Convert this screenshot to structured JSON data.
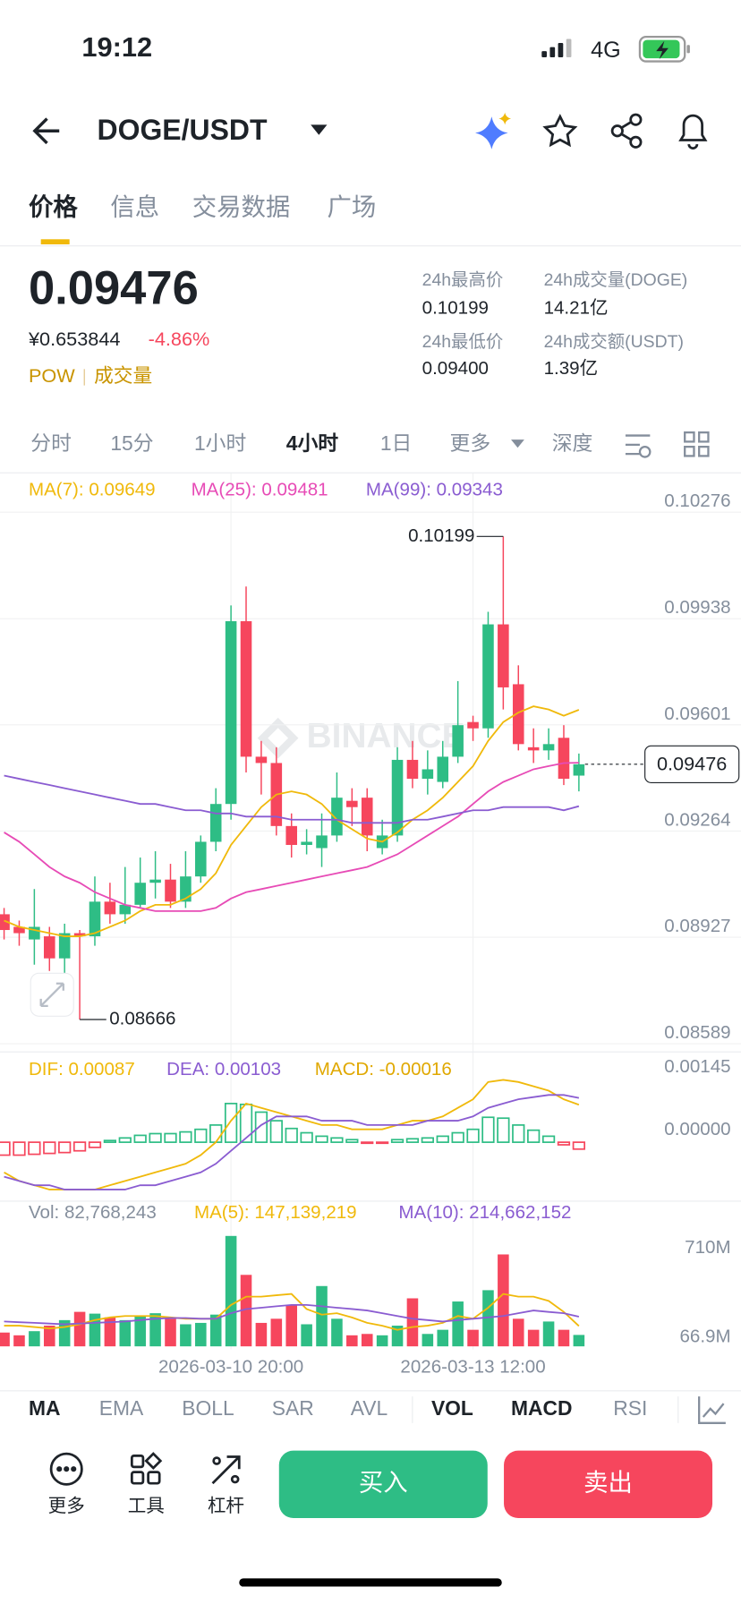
{
  "status_bar": {
    "time": "19:12",
    "network": "4G"
  },
  "header": {
    "pair": "DOGE/USDT"
  },
  "tabs": [
    "价格",
    "信息",
    "交易数据",
    "广场"
  ],
  "ticker": {
    "price": "0.09476",
    "cny": "¥0.653844",
    "change": "-4.86%",
    "tags": [
      "POW",
      "成交量"
    ],
    "stats": [
      {
        "label": "24h最高价",
        "value": "0.10199"
      },
      {
        "label": "24h成交量(DOGE)",
        "value": "14.21亿"
      },
      {
        "label": "24h最低价",
        "value": "0.09400"
      },
      {
        "label": "24h成交额(USDT)",
        "value": "1.39亿"
      }
    ]
  },
  "intervals": [
    "分时",
    "15分",
    "1小时",
    "4小时",
    "1日",
    "更多",
    "深度"
  ],
  "watermark": "BINANCE",
  "chart_data": [
    {
      "type": "candlestick",
      "up_color": "#2ebd85",
      "down_color": "#f6465d",
      "grid": true,
      "categories": [
        null,
        null,
        null,
        null,
        null,
        null,
        null,
        null,
        null,
        null,
        null,
        null,
        null,
        null,
        null,
        "2026-03-10 20:00",
        null,
        null,
        null,
        null,
        null,
        null,
        null,
        null,
        null,
        null,
        null,
        null,
        null,
        null,
        null,
        "2026-03-13 12:00",
        null,
        null,
        null,
        null,
        null,
        null,
        null
      ],
      "open": [
        0.09,
        0.0896,
        0.0892,
        0.0893,
        0.0886,
        0.0894,
        0.0893,
        0.0904,
        0.09,
        0.0903,
        0.091,
        0.0911,
        0.0904,
        0.0912,
        0.0923,
        0.0935,
        0.0993,
        0.095,
        0.0948,
        0.0928,
        0.0922,
        0.0921,
        0.0925,
        0.0936,
        0.0937,
        0.0921,
        0.0925,
        0.0949,
        0.0943,
        0.0942,
        0.095,
        0.0961,
        0.0959,
        0.0992,
        0.0973,
        0.0953,
        0.0952,
        0.0956,
        0.0944
      ],
      "high": [
        0.0902,
        0.0898,
        0.0908,
        0.0896,
        0.0897,
        0.0895,
        0.0912,
        0.091,
        0.0915,
        0.0918,
        0.092,
        0.0916,
        0.092,
        0.0925,
        0.094,
        0.0998,
        0.1004,
        0.0955,
        0.0953,
        0.0932,
        0.0927,
        0.0932,
        0.0945,
        0.094,
        0.094,
        0.093,
        0.0953,
        0.0955,
        0.0952,
        0.0955,
        0.0974,
        0.0963,
        0.0996,
        0.10199,
        0.0979,
        0.0959,
        0.0959,
        0.096,
        0.0951
      ],
      "low": [
        0.0892,
        0.089,
        0.0884,
        0.0882,
        0.0881,
        0.08666,
        0.089,
        0.0897,
        0.0897,
        0.0902,
        0.0905,
        0.0902,
        0.0902,
        0.091,
        0.092,
        0.093,
        0.0945,
        0.0938,
        0.0925,
        0.0918,
        0.0919,
        0.0915,
        0.0923,
        0.0928,
        0.092,
        0.0919,
        0.0923,
        0.094,
        0.0938,
        0.094,
        0.0948,
        0.0955,
        0.0956,
        0.0965,
        0.0952,
        0.0948,
        0.0949,
        0.0941,
        0.0939
      ],
      "close": [
        0.0895,
        0.0894,
        0.0896,
        0.0886,
        0.0894,
        0.0893,
        0.0904,
        0.09,
        0.0903,
        0.091,
        0.0911,
        0.0904,
        0.0912,
        0.0923,
        0.0935,
        0.0993,
        0.095,
        0.0948,
        0.0928,
        0.0922,
        0.0923,
        0.0925,
        0.0937,
        0.0934,
        0.0925,
        0.0925,
        0.0949,
        0.0943,
        0.0946,
        0.095,
        0.096,
        0.0959,
        0.0992,
        0.0972,
        0.0954,
        0.0952,
        0.0954,
        0.0943,
        0.09476
      ],
      "series": [
        {
          "name": "MA(7): 0.09649",
          "color": "#f0b90b",
          "values": [
            0.0898,
            0.0896,
            0.0895,
            0.0894,
            0.0893,
            0.0893,
            0.0894,
            0.0896,
            0.0898,
            0.0901,
            0.0903,
            0.0903,
            0.0905,
            0.0908,
            0.0913,
            0.0922,
            0.0928,
            0.0934,
            0.0938,
            0.0939,
            0.0938,
            0.0935,
            0.093,
            0.0927,
            0.0924,
            0.0923,
            0.0926,
            0.093,
            0.0933,
            0.0937,
            0.0942,
            0.0947,
            0.0955,
            0.0961,
            0.0964,
            0.0966,
            0.0965,
            0.0963,
            0.09649
          ]
        },
        {
          "name": "MA(25): 0.09481",
          "color": "#e74bb6",
          "values": [
            0.0926,
            0.0923,
            0.0919,
            0.0915,
            0.0912,
            0.091,
            0.0907,
            0.0905,
            0.0903,
            0.0902,
            0.0901,
            0.0901,
            0.0901,
            0.0901,
            0.0902,
            0.0905,
            0.0907,
            0.0908,
            0.0909,
            0.091,
            0.0911,
            0.0912,
            0.0913,
            0.0914,
            0.0915,
            0.0917,
            0.0919,
            0.0922,
            0.0925,
            0.0928,
            0.0931,
            0.0935,
            0.0939,
            0.0942,
            0.0944,
            0.0946,
            0.0947,
            0.0948,
            0.09481
          ]
        },
        {
          "name": "MA(99): 0.09343",
          "color": "#8a5cd1",
          "values": [
            0.0944,
            0.0943,
            0.0942,
            0.0941,
            0.094,
            0.0939,
            0.0938,
            0.0937,
            0.0936,
            0.0935,
            0.0935,
            0.0934,
            0.0933,
            0.0933,
            0.0932,
            0.0932,
            0.0931,
            0.0931,
            0.0931,
            0.093,
            0.093,
            0.093,
            0.093,
            0.0929,
            0.0929,
            0.0929,
            0.0929,
            0.093,
            0.093,
            0.0931,
            0.0932,
            0.0933,
            0.0933,
            0.0934,
            0.0934,
            0.0934,
            0.0934,
            0.0933,
            0.09343
          ]
        }
      ],
      "last_price": 0.09476,
      "ylim": [
        0.08589,
        0.10276
      ],
      "yticks": [
        0.10276,
        0.09938,
        0.09601,
        0.09264,
        0.08927,
        0.08589
      ]
    },
    {
      "type": "macd",
      "grid": false,
      "series": [
        {
          "name": "DIF: 0.00087",
          "color": "#f0b90b",
          "values": [
            -0.0007,
            -0.0009,
            -0.001,
            -0.0011,
            -0.0011,
            -0.0011,
            -0.0011,
            -0.001,
            -0.0009,
            -0.0008,
            -0.0007,
            -0.0006,
            -0.0005,
            -0.0003,
            0,
            0.0005,
            0.0009,
            0.0008,
            0.0007,
            0.0006,
            0.0005,
            0.0004,
            0.0004,
            0.0003,
            0.0003,
            0.0003,
            0.0004,
            0.0005,
            0.0005,
            0.0006,
            0.0008,
            0.001,
            0.0014,
            0.00145,
            0.0014,
            0.0013,
            0.0012,
            0.001,
            0.00087
          ]
        },
        {
          "name": "DEA: 0.00103",
          "color": "#8a5cd1",
          "values": [
            -0.0008,
            -0.0009,
            -0.001,
            -0.001,
            -0.0011,
            -0.0011,
            -0.0011,
            -0.0011,
            -0.0011,
            -0.001,
            -0.001,
            -0.0009,
            -0.0008,
            -0.0007,
            -0.0005,
            -0.0002,
            0.0001,
            0.0004,
            0.0006,
            0.0006,
            0.0006,
            0.0005,
            0.0005,
            0.0005,
            0.0004,
            0.0004,
            0.0004,
            0.0004,
            0.0005,
            0.0005,
            0.0005,
            0.0006,
            0.0008,
            0.0009,
            0.001,
            0.00105,
            0.0011,
            0.0011,
            0.00103
          ]
        },
        {
          "name": "MACD: -0.00016",
          "color": "#e0a800",
          "style": "bar",
          "values": [
            -0.0003,
            -0.0003,
            -0.00028,
            -0.00026,
            -0.00024,
            -0.0002,
            -0.00012,
            4e-05,
            0.0001,
            0.00016,
            0.0002,
            0.0002,
            0.00024,
            0.0003,
            0.0004,
            0.0009,
            0.00088,
            0.0007,
            0.0005,
            0.00032,
            0.00022,
            0.00014,
            0.0001,
            6e-05,
            -2e-05,
            -2e-05,
            6e-05,
            8e-05,
            0.0001,
            0.00014,
            0.00022,
            0.0003,
            0.00058,
            0.00056,
            0.0004,
            0.00028,
            0.00014,
            -6e-05,
            -0.00016
          ]
        }
      ],
      "ylim": [
        -0.0013,
        0.0021
      ],
      "yticks": [
        0.00145,
        {
          "value": 0,
          "label": "0.00000"
        }
      ]
    },
    {
      "type": "bar",
      "grid": false,
      "title": "Vol: 82,768,243",
      "values": [
        100000000,
        80000000,
        110000000,
        150000000,
        190000000,
        250000000,
        237000000,
        210000000,
        190000000,
        220000000,
        240000000,
        200000000,
        160000000,
        170000000,
        230000000,
        800000000,
        518000000,
        170000000,
        200000000,
        300000000,
        160000000,
        437000000,
        200000000,
        80000000,
        90000000,
        80000000,
        150000000,
        348000000,
        90000000,
        120000000,
        325000000,
        120000000,
        407000000,
        666000000,
        200000000,
        120000000,
        180000000,
        120000000,
        82768243
      ],
      "series": [
        {
          "name": "MA(5): 147,139,219",
          "color": "#f0b90b",
          "values": [
            150000000,
            150000000,
            140000000,
            130000000,
            140000000,
            160000000,
            190000000,
            210000000,
            220000000,
            220000000,
            220000000,
            210000000,
            200000000,
            200000000,
            200000000,
            300000000,
            360000000,
            360000000,
            370000000,
            380000000,
            270000000,
            230000000,
            240000000,
            210000000,
            170000000,
            150000000,
            120000000,
            140000000,
            150000000,
            170000000,
            220000000,
            200000000,
            280000000,
            380000000,
            360000000,
            360000000,
            330000000,
            250000000,
            147139219
          ]
        },
        {
          "name": "MA(10): 214,662,152",
          "color": "#8a5cd1",
          "values": [
            180000000,
            175000000,
            170000000,
            165000000,
            160000000,
            165000000,
            170000000,
            175000000,
            180000000,
            190000000,
            200000000,
            205000000,
            205000000,
            200000000,
            200000000,
            240000000,
            270000000,
            280000000,
            290000000,
            300000000,
            300000000,
            290000000,
            280000000,
            270000000,
            260000000,
            240000000,
            220000000,
            200000000,
            190000000,
            180000000,
            190000000,
            200000000,
            210000000,
            220000000,
            240000000,
            260000000,
            250000000,
            240000000,
            214662152
          ]
        }
      ],
      "ylim": [
        0,
        1000000000
      ],
      "yticks": [
        {
          "value": 710000000,
          "label": "710M"
        },
        {
          "value": 66900000,
          "label": "66.9M"
        }
      ]
    }
  ],
  "indicator_tabs": [
    "MA",
    "EMA",
    "BOLL",
    "SAR",
    "AVL",
    "VOL",
    "MACD",
    "RSI"
  ],
  "actions": {
    "tools": [
      "更多",
      "工具",
      "杠杆"
    ],
    "buy": "买入",
    "sell": "卖出"
  }
}
